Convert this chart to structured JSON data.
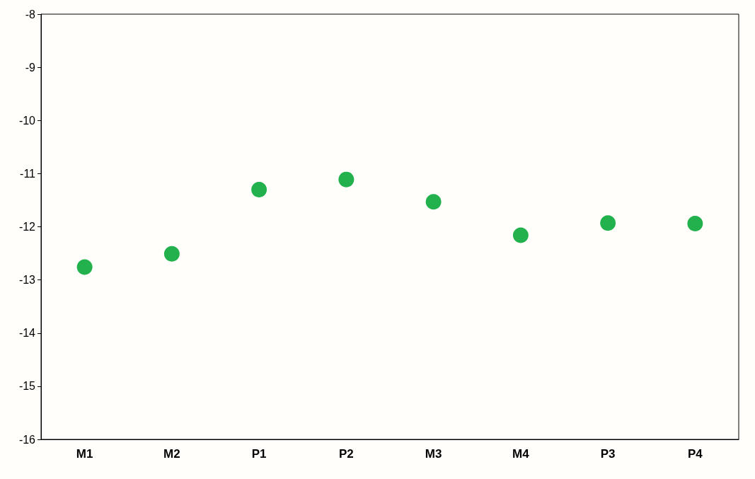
{
  "chart_data": {
    "type": "scatter",
    "categories": [
      "M1",
      "M2",
      "P1",
      "P2",
      "M3",
      "M4",
      "P3",
      "P4"
    ],
    "values": [
      -12.76,
      -12.51,
      -11.3,
      -11.11,
      -11.53,
      -12.16,
      -11.93,
      -11.94
    ],
    "color": "#22b14c",
    "marker": "circle",
    "ylim": [
      -16,
      -8
    ],
    "yticks": [
      -16,
      -15,
      -14,
      -13,
      -12,
      -11,
      -10,
      -9,
      -8
    ],
    "grid": false
  }
}
